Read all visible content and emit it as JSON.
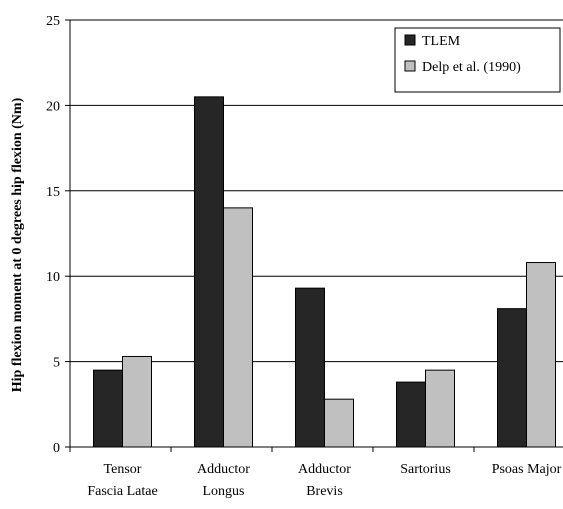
{
  "chart_data": {
    "type": "bar",
    "title": "",
    "xlabel": "",
    "ylabel": "Hip flexion moment at 0 degrees hip flexion (Nm)",
    "ylim": [
      0,
      25
    ],
    "yticks": [
      0,
      5,
      10,
      15,
      20,
      25
    ],
    "grid": true,
    "legend_position": "top-right",
    "categories": [
      [
        "Tensor",
        "Fascia Latae"
      ],
      [
        "Adductor",
        "Longus"
      ],
      [
        "Adductor",
        "Brevis"
      ],
      [
        "Sartorius"
      ],
      [
        "Psoas Major"
      ]
    ],
    "series": [
      {
        "name": "TLEM",
        "color": "#262626",
        "values": [
          4.5,
          20.5,
          9.3,
          3.8,
          8.1
        ]
      },
      {
        "name": "Delp et al. (1990)",
        "color": "#c0c0c0",
        "values": [
          5.3,
          14.0,
          2.8,
          4.5,
          10.8
        ]
      }
    ]
  }
}
